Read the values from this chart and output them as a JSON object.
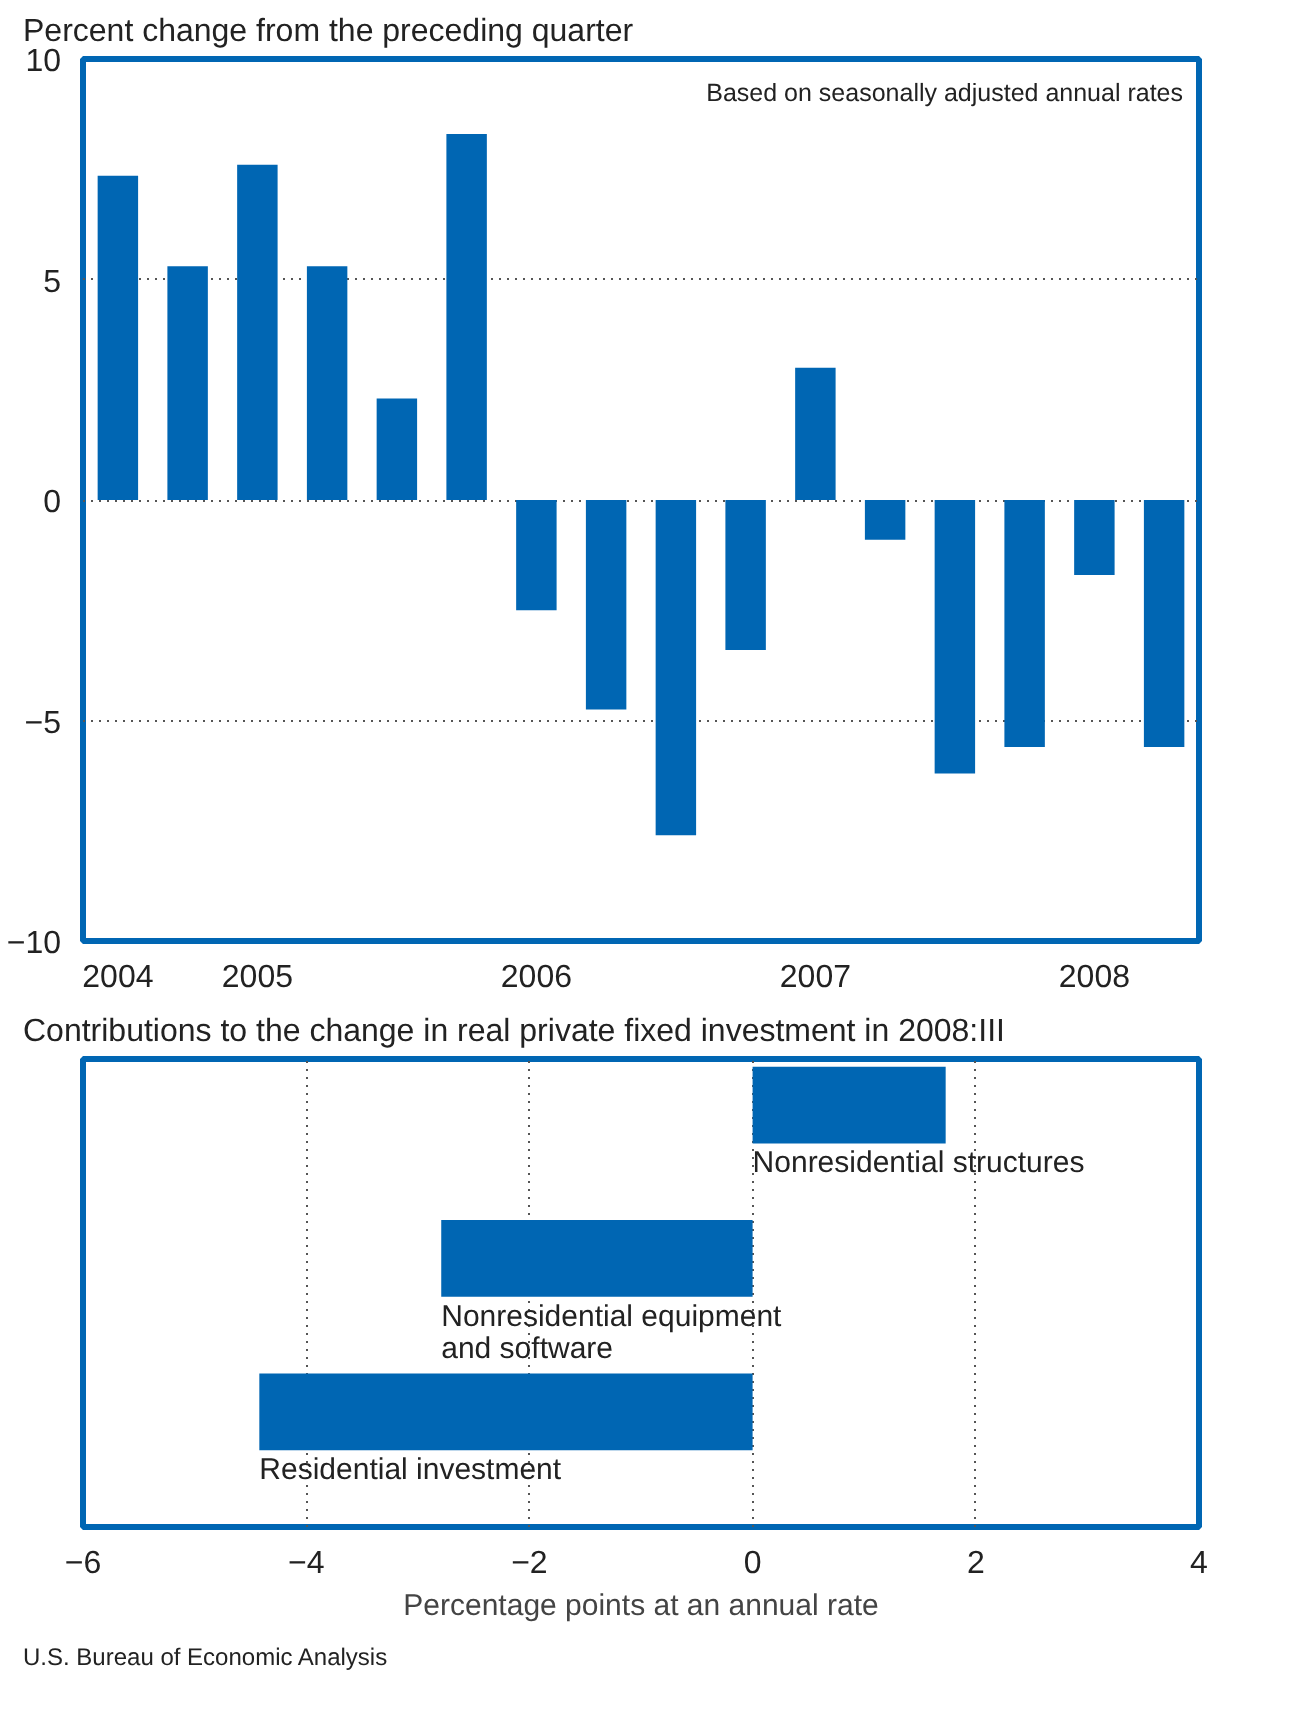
{
  "chart_data": [
    {
      "type": "bar",
      "title": "Percent change from the preceding quarter",
      "categories": [
        "2004",
        null,
        "2005",
        null,
        null,
        null,
        "2006",
        null,
        null,
        null,
        "2007",
        null,
        null,
        null,
        "2008",
        null
      ],
      "values": [
        7.35,
        5.3,
        7.6,
        5.3,
        2.3,
        8.3,
        -2.5,
        -4.75,
        -7.6,
        -3.4,
        3.0,
        -0.9,
        -6.2,
        -5.6,
        -1.7,
        -5.6
      ],
      "color": "#0066b3",
      "ylim": [
        -10,
        10
      ],
      "yticks": [
        {
          "value": -10,
          "label": "−10"
        },
        {
          "value": -5,
          "label": "−5"
        },
        0,
        5,
        10
      ],
      "grid": "y",
      "annotations": [
        "Based on seasonally adjusted annual rates"
      ]
    },
    {
      "type": "bar",
      "orientation": "horizontal",
      "title": "Contributions to the change in real private fixed investment in 2008:III",
      "categories": [
        "Nonresidential structures",
        "Nonresidential equipment and software",
        "Residential investment"
      ],
      "values": [
        1.73,
        -2.79,
        -4.42
      ],
      "color": "#0066b3",
      "xlim": [
        -6,
        4
      ],
      "xticks": [
        {
          "value": -6,
          "label": "−6"
        },
        {
          "value": -4,
          "label": "−4"
        },
        {
          "value": -2,
          "label": "−2"
        },
        0,
        2,
        4
      ],
      "xlabel": "Percentage points at an annual rate",
      "grid": "x",
      "annotations": [
        "U.S. Bureau of Economic Analysis"
      ]
    }
  ]
}
